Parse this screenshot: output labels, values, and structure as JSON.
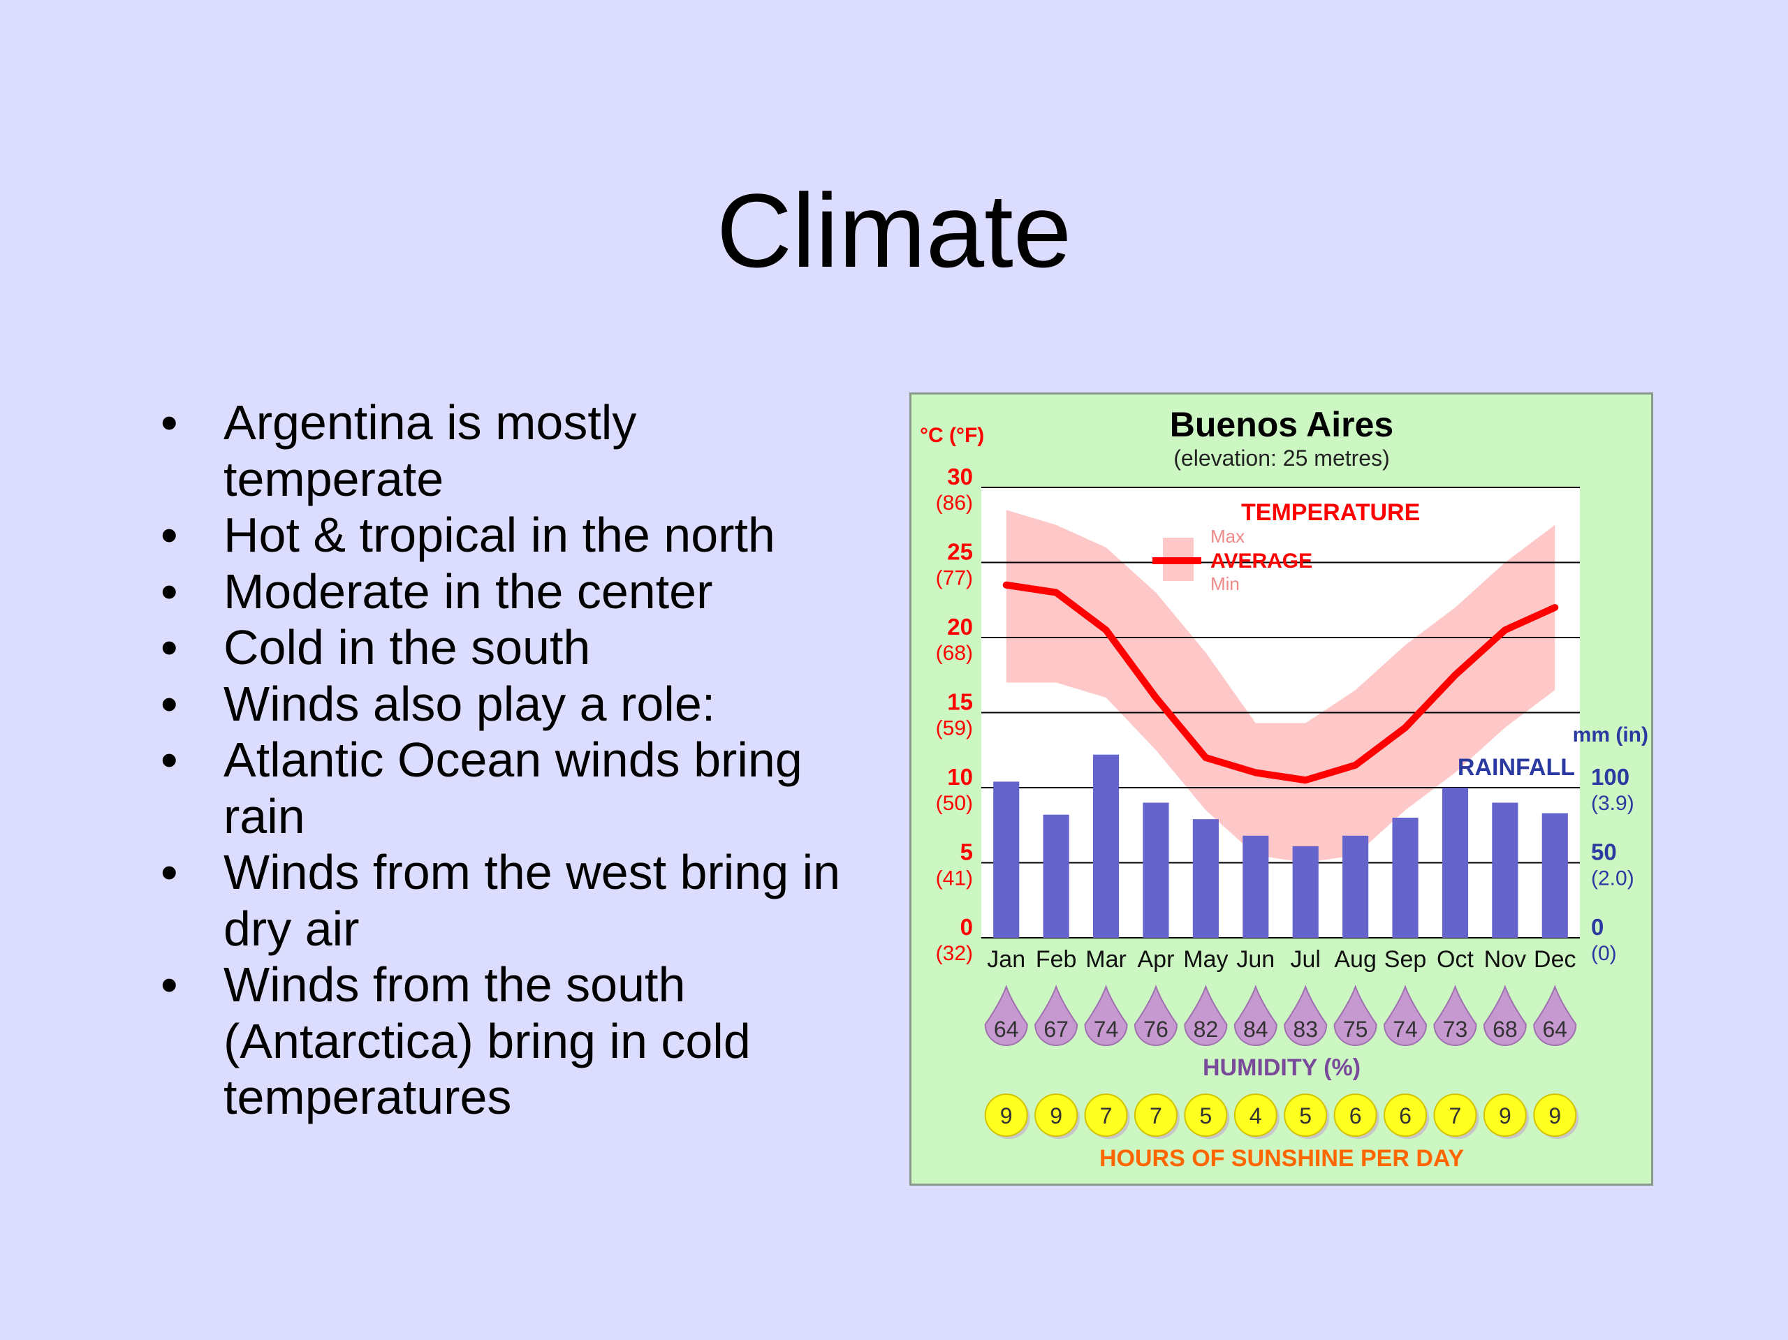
{
  "slide": {
    "title": "Climate",
    "bullets": [
      "Argentina is mostly temperate",
      "Hot & tropical in the north",
      "Moderate in the center",
      "Cold in the south",
      "Winds also play a role:",
      "Atlantic Ocean winds bring rain",
      "Winds from the west bring in dry air",
      "Winds from the south (Antarctica) bring in cold temperatures"
    ]
  },
  "chart_data": {
    "type": "bar+line",
    "title": "Buenos Aires",
    "subtitle": "(elevation: 25 metres)",
    "categories": [
      "Jan",
      "Feb",
      "Mar",
      "Apr",
      "May",
      "Jun",
      "Jul",
      "Aug",
      "Sep",
      "Oct",
      "Nov",
      "Dec"
    ],
    "temperature": {
      "label": "TEMPERATURE",
      "legend": {
        "max": "Max",
        "average": "AVERAGE",
        "min": "Min"
      },
      "axis_label": "°C (°F)",
      "ticks": [
        {
          "c": "0",
          "f": "(32)"
        },
        {
          "c": "5",
          "f": "(41)"
        },
        {
          "c": "10",
          "f": "(50)"
        },
        {
          "c": "15",
          "f": "(59)"
        },
        {
          "c": "20",
          "f": "(68)"
        },
        {
          "c": "25",
          "f": "(77)"
        },
        {
          "c": "30",
          "f": "(86)"
        }
      ],
      "ylim": [
        0,
        30
      ],
      "max": [
        28.5,
        27.5,
        26,
        23,
        19,
        14.3,
        14.3,
        16.5,
        19.5,
        22,
        25,
        27.5
      ],
      "average": [
        23.5,
        23,
        20.5,
        16,
        12,
        11,
        10.5,
        11.5,
        14,
        17.5,
        20.5,
        22
      ],
      "min": [
        17,
        17,
        16,
        12.5,
        8.5,
        5.5,
        5,
        5.5,
        8.5,
        11,
        14,
        16.5
      ],
      "color_average": "#ff0000",
      "color_range": "#ffc8c8"
    },
    "rainfall": {
      "label": "RAINFALL",
      "axis_label": "mm (in)",
      "ticks": [
        {
          "mm": "0",
          "in": "(0)"
        },
        {
          "mm": "50",
          "in": "(2.0)"
        },
        {
          "mm": "100",
          "in": "(3.9)"
        }
      ],
      "ylim": [
        0,
        300
      ],
      "values": [
        104,
        82,
        122,
        90,
        79,
        68,
        61,
        68,
        80,
        100,
        90,
        83
      ],
      "color": "#6464cc"
    },
    "humidity": {
      "label": "HUMIDITY (%)",
      "values": [
        64,
        67,
        74,
        76,
        82,
        84,
        83,
        75,
        74,
        73,
        68,
        64
      ]
    },
    "sunshine": {
      "label": "HOURS OF SUNSHINE PER DAY",
      "values": [
        9,
        9,
        7,
        7,
        5,
        4,
        5,
        6,
        6,
        7,
        9,
        9
      ]
    },
    "colors": {
      "background": "#ccf7c2",
      "plot_background": "#ffffff",
      "temperature_text": "#ff0000",
      "rainfall_text": "#2a3aa0",
      "humidity_drop": "#c69ad0",
      "sunshine_sun": "#ffff20",
      "sunshine_text": "#ff6600"
    }
  }
}
